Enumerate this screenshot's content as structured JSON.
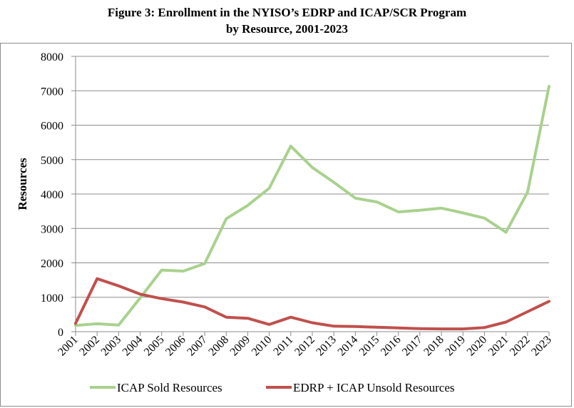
{
  "figure": {
    "title_line1": "Figure 3:  Enrollment in the NYISO’s EDRP and ICAP/SCR Program",
    "title_line2": "by Resource, 2001-2023"
  },
  "chart_data": {
    "type": "line",
    "title": "Figure 3:  Enrollment in the NYISO’s EDRP and ICAP/SCR Program by Resource, 2001-2023",
    "xlabel": "",
    "ylabel": "Resources",
    "ylim": [
      0,
      8000
    ],
    "yticks": [
      0,
      1000,
      2000,
      3000,
      4000,
      5000,
      6000,
      7000,
      8000
    ],
    "grid": true,
    "legend_position": "bottom",
    "categories": [
      "2001",
      "2002",
      "2003",
      "2004",
      "2005",
      "2006",
      "2007",
      "2008",
      "2009",
      "2010",
      "2011",
      "2012",
      "2013",
      "2014",
      "2015",
      "2016",
      "2017",
      "2018",
      "2019",
      "2020",
      "2021",
      "2022",
      "2023"
    ],
    "series": [
      {
        "name": "ICAP Sold Resources",
        "color": "#a9d18e",
        "values": [
          180,
          230,
          190,
          980,
          1790,
          1760,
          1980,
          3280,
          3670,
          4170,
          5390,
          4770,
          4340,
          3880,
          3770,
          3480,
          3530,
          3590,
          3450,
          3300,
          2890,
          4050,
          7130
        ]
      },
      {
        "name": "EDRP + ICAP Unsold Resources",
        "color": "#c0504d",
        "values": [
          240,
          1540,
          1330,
          1090,
          960,
          860,
          720,
          420,
          390,
          210,
          420,
          260,
          160,
          150,
          130,
          110,
          90,
          80,
          80,
          120,
          280,
          580,
          880
        ]
      }
    ]
  }
}
